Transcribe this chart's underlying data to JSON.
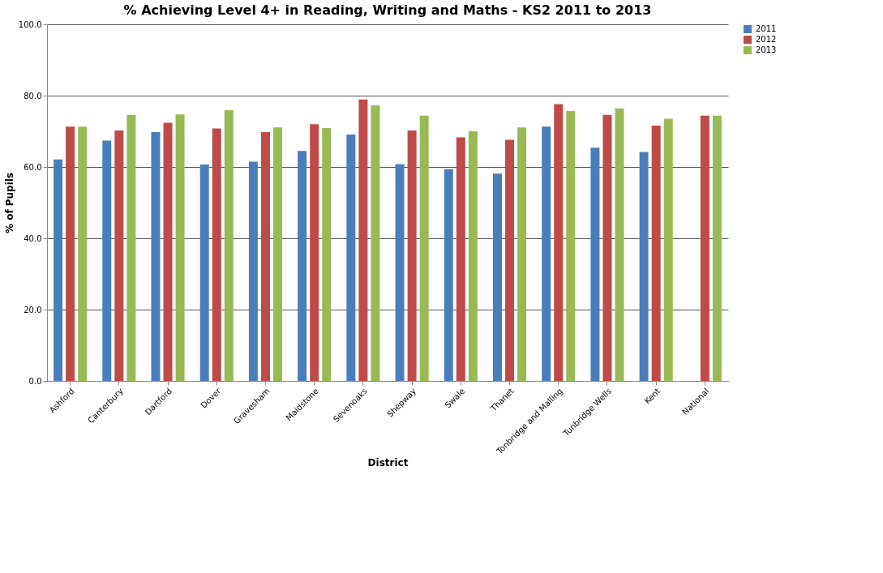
{
  "chart_data": {
    "type": "bar",
    "title": "% Achieving Level 4+ in Reading, Writing and Maths - KS2 2011 to 2013",
    "xlabel": "District",
    "ylabel": "% of Pupils",
    "categories": [
      "Ashford",
      "Canterbury",
      "Dartford",
      "Dover",
      "Gravesham",
      "Maidstone",
      "Sevenoaks",
      "Shepway",
      "Swale",
      "Thanet",
      "Tonbridge and Malling",
      "Tunbridge Wells",
      "Kent",
      "National"
    ],
    "series": [
      {
        "name": "2011",
        "color": "#4a7ebb",
        "values": [
          62.1,
          67.4,
          69.8,
          60.7,
          61.5,
          64.5,
          69.1,
          60.8,
          59.4,
          58.1,
          71.3,
          65.4,
          64.2,
          null
        ]
      },
      {
        "name": "2012",
        "color": "#be4b48",
        "values": [
          71.3,
          70.2,
          72.4,
          70.8,
          69.8,
          72.0,
          78.9,
          70.2,
          68.3,
          67.6,
          77.6,
          74.6,
          71.6,
          74.4
        ]
      },
      {
        "name": "2013",
        "color": "#98b954",
        "values": [
          71.3,
          74.6,
          74.7,
          75.9,
          71.1,
          70.9,
          77.3,
          74.4,
          70.0,
          71.1,
          75.7,
          76.4,
          73.5,
          74.4
        ]
      }
    ],
    "ylim": [
      0,
      100
    ],
    "yticks": [
      {
        "value": 0,
        "label": "0.0"
      },
      {
        "value": 20,
        "label": "20.0"
      },
      {
        "value": 40,
        "label": "40.0"
      },
      {
        "value": 60,
        "label": "60.0"
      },
      {
        "value": 80,
        "label": "80.0"
      },
      {
        "value": 100,
        "label": "100.0"
      }
    ],
    "grid": "y",
    "legend": "right"
  }
}
